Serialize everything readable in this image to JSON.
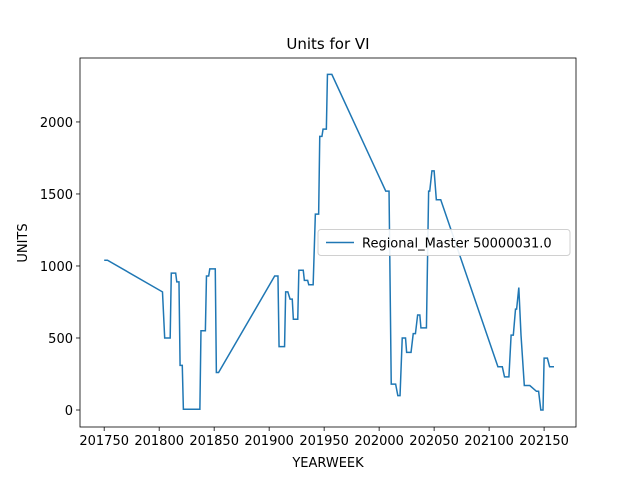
{
  "chart_data": {
    "type": "line",
    "title": "Units for VI",
    "x_label": "YEARWEEK",
    "y_label": "UNITS",
    "xlim": [
      201728,
      202179
    ],
    "ylim": [
      -118,
      2444
    ],
    "xticks": [
      201750,
      201800,
      201850,
      201900,
      201950,
      202000,
      202050,
      202100,
      202150
    ],
    "yticks": [
      0,
      500,
      1000,
      1500,
      2000
    ],
    "legend": "center right",
    "series": [
      {
        "name": "Regional_Master 50000031.0",
        "color": "#1f77b4",
        "x": [
          201750,
          201753,
          201803,
          201805,
          201810,
          201811,
          201815,
          201816,
          201818,
          201819,
          201821,
          201822,
          201837,
          201838,
          201842,
          201843,
          201845,
          201846,
          201851,
          201852,
          201854,
          201905,
          201908,
          201909,
          201914,
          201915,
          201917,
          201919,
          201921,
          201922,
          201926,
          201927,
          201931,
          201932,
          201935,
          201936,
          201940,
          201942,
          201945,
          201946,
          201948,
          201949,
          201952,
          201953,
          201957,
          202006,
          202009,
          202011,
          202015,
          202017,
          202019,
          202021,
          202024,
          202025,
          202029,
          202031,
          202033,
          202035,
          202037,
          202038,
          202043,
          202045,
          202046,
          202048,
          202050,
          202052,
          202056,
          202108,
          202112,
          202114,
          202118,
          202120,
          202122,
          202124,
          202125,
          202127,
          202129,
          202132,
          202137,
          202143,
          202145,
          202147,
          202149,
          202150,
          202153,
          202155,
          202159
        ],
        "values": [
          1040,
          1040,
          820,
          500,
          500,
          950,
          950,
          890,
          890,
          310,
          310,
          5,
          5,
          550,
          550,
          930,
          930,
          980,
          980,
          260,
          260,
          930,
          930,
          440,
          440,
          820,
          820,
          770,
          770,
          630,
          630,
          970,
          970,
          900,
          900,
          870,
          870,
          1360,
          1360,
          1900,
          1900,
          1950,
          1950,
          2330,
          2330,
          1520,
          1520,
          180,
          180,
          100,
          100,
          500,
          500,
          400,
          400,
          530,
          530,
          660,
          660,
          570,
          570,
          1520,
          1520,
          1660,
          1660,
          1460,
          1460,
          300,
          300,
          230,
          230,
          520,
          520,
          700,
          700,
          850,
          520,
          170,
          170,
          130,
          130,
          0,
          0,
          360,
          360,
          300,
          300
        ]
      }
    ]
  }
}
